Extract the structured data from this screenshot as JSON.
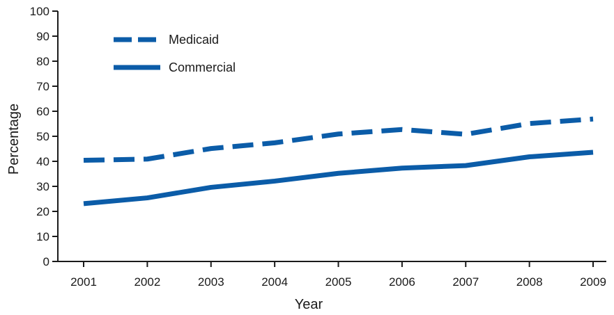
{
  "chart_data": {
    "type": "line",
    "title": "",
    "xlabel": "Year",
    "ylabel": "Percentage",
    "x": [
      "2001",
      "2002",
      "2003",
      "2004",
      "2005",
      "2006",
      "2007",
      "2008",
      "2009"
    ],
    "ylim": [
      0,
      100
    ],
    "yticks": [
      0,
      10,
      20,
      30,
      40,
      50,
      60,
      70,
      80,
      90,
      100
    ],
    "grid": false,
    "legend_position": "top-left",
    "series": [
      {
        "name": "Medicaid",
        "style": "dashed",
        "color": "#0b5ca8",
        "values": [
          40.4,
          40.9,
          45.1,
          47.4,
          50.9,
          52.7,
          50.8,
          55.1,
          56.9
        ]
      },
      {
        "name": "Commercial",
        "style": "solid",
        "color": "#0b5ca8",
        "values": [
          23.1,
          25.4,
          29.6,
          32.1,
          35.2,
          37.3,
          38.3,
          41.8,
          43.6
        ]
      }
    ]
  }
}
